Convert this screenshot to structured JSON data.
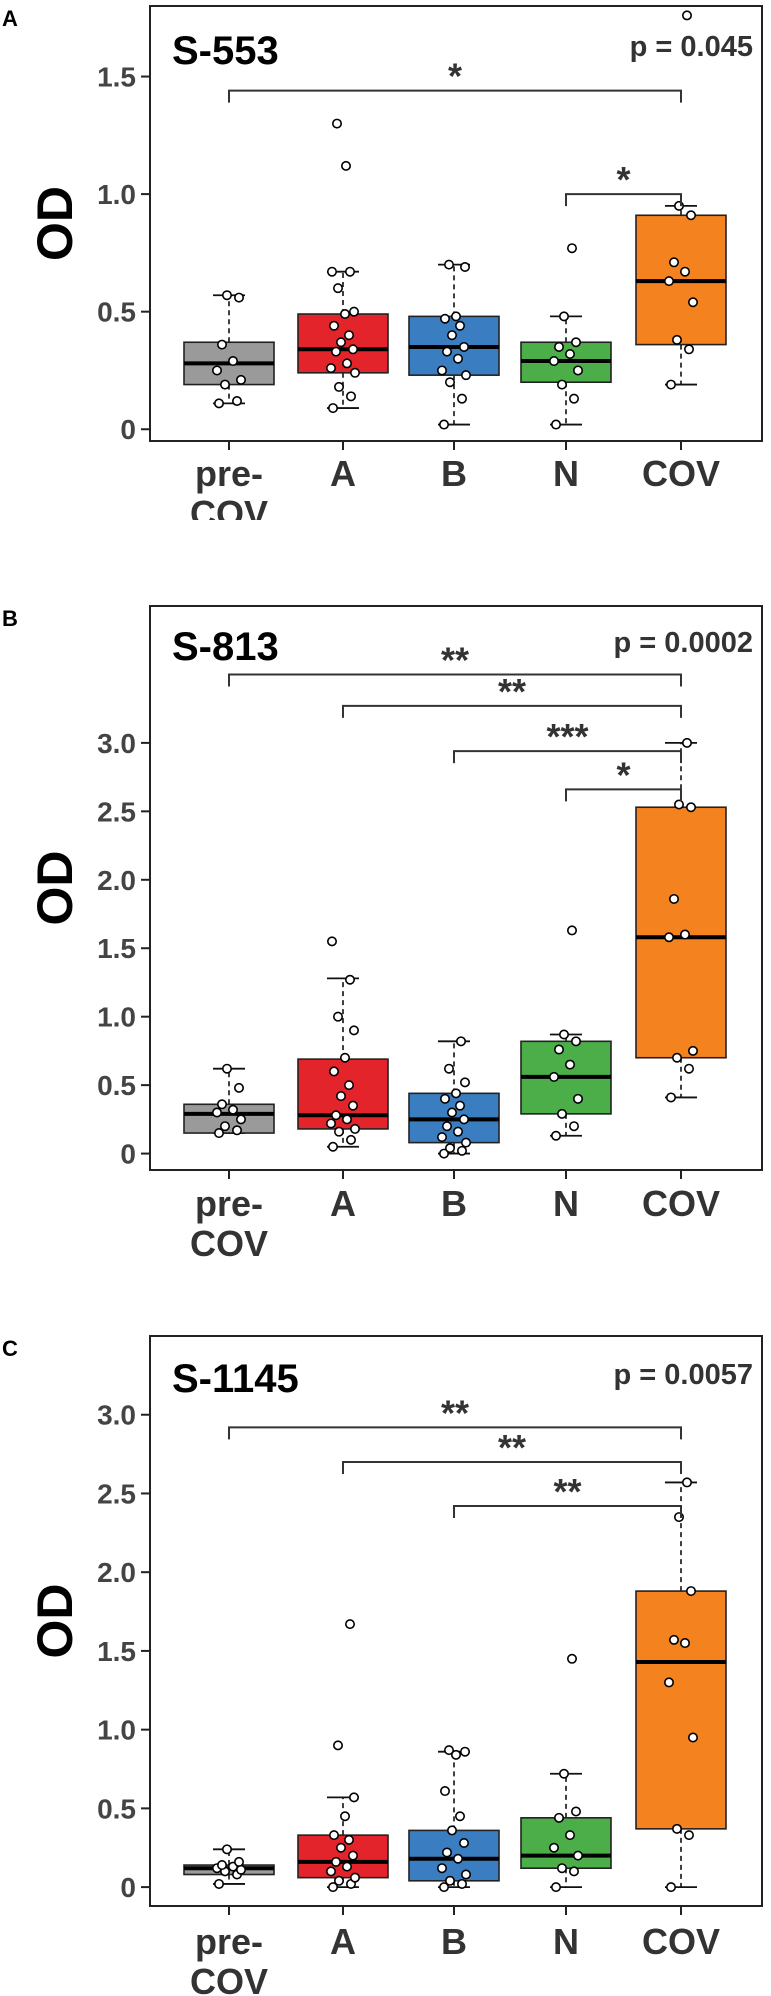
{
  "chart_data": [
    {
      "panel_label": "A",
      "title": "S-553",
      "p_value_label": "p = 0.045",
      "type": "box",
      "ylabel": "OD",
      "ylim": [
        -0.05,
        1.8
      ],
      "yticks": [
        0,
        0.5,
        1.0,
        1.5
      ],
      "ytick_labels": [
        "0",
        "0.5",
        "1.0",
        "1.5"
      ],
      "categories": [
        "pre-\nCOV",
        "A",
        "B",
        "N",
        "COV"
      ],
      "colors": [
        "#9a9a9a",
        "#e3242b",
        "#3a7ec1",
        "#4cae48",
        "#f4821f"
      ],
      "boxes": [
        {
          "q1": 0.19,
          "median": 0.28,
          "q3": 0.37,
          "whisker_low": 0.11,
          "whisker_high": 0.57,
          "points": [
            0.11,
            0.12,
            0.19,
            0.21,
            0.25,
            0.29,
            0.36,
            0.56,
            0.57
          ]
        },
        {
          "q1": 0.24,
          "median": 0.34,
          "q3": 0.49,
          "whisker_low": 0.09,
          "whisker_high": 0.67,
          "points": [
            0.09,
            0.14,
            0.18,
            0.24,
            0.26,
            0.28,
            0.33,
            0.34,
            0.37,
            0.4,
            0.44,
            0.49,
            0.5,
            0.6,
            0.67,
            0.67,
            1.12,
            1.3
          ]
        },
        {
          "q1": 0.23,
          "median": 0.35,
          "q3": 0.48,
          "whisker_low": 0.02,
          "whisker_high": 0.7,
          "points": [
            0.02,
            0.13,
            0.2,
            0.23,
            0.25,
            0.3,
            0.33,
            0.35,
            0.4,
            0.44,
            0.47,
            0.48,
            0.69,
            0.7
          ]
        },
        {
          "q1": 0.2,
          "median": 0.29,
          "q3": 0.37,
          "whisker_low": 0.02,
          "whisker_high": 0.48,
          "points": [
            0.02,
            0.13,
            0.19,
            0.25,
            0.29,
            0.32,
            0.35,
            0.37,
            0.48,
            0.77
          ]
        },
        {
          "q1": 0.36,
          "median": 0.63,
          "q3": 0.91,
          "whisker_low": 0.19,
          "whisker_high": 0.95,
          "points": [
            0.19,
            0.34,
            0.38,
            0.54,
            0.63,
            0.67,
            0.71,
            0.91,
            0.95,
            1.76
          ]
        }
      ],
      "brackets": [
        {
          "from": 0,
          "to": 4,
          "y": 1.44,
          "label": "*"
        },
        {
          "from": 3,
          "to": 4,
          "y": 1.0,
          "label": "*"
        }
      ]
    },
    {
      "panel_label": "B",
      "title": "S-813",
      "p_value_label": "p = 0.0002",
      "type": "box",
      "ylabel": "OD",
      "ylim": [
        -0.12,
        4.0
      ],
      "yticks": [
        0,
        0.5,
        1.0,
        1.5,
        2.0,
        2.5,
        3.0
      ],
      "ytick_labels": [
        "0",
        "0.5",
        "1.0",
        "1.5",
        "2.0",
        "2.5",
        "3.0"
      ],
      "categories": [
        "pre-\nCOV",
        "A",
        "B",
        "N",
        "COV"
      ],
      "colors": [
        "#9a9a9a",
        "#e3242b",
        "#3a7ec1",
        "#4cae48",
        "#f4821f"
      ],
      "boxes": [
        {
          "q1": 0.15,
          "median": 0.29,
          "q3": 0.36,
          "whisker_low": 0.15,
          "whisker_high": 0.62,
          "points": [
            0.15,
            0.17,
            0.2,
            0.25,
            0.3,
            0.32,
            0.36,
            0.48,
            0.62
          ]
        },
        {
          "q1": 0.18,
          "median": 0.28,
          "q3": 0.69,
          "whisker_low": 0.05,
          "whisker_high": 1.28,
          "points": [
            0.05,
            0.1,
            0.16,
            0.18,
            0.22,
            0.25,
            0.28,
            0.35,
            0.42,
            0.5,
            0.6,
            0.7,
            0.9,
            1.0,
            1.27,
            1.55
          ]
        },
        {
          "q1": 0.08,
          "median": 0.25,
          "q3": 0.44,
          "whisker_low": 0.0,
          "whisker_high": 0.82,
          "points": [
            0.0,
            0.02,
            0.04,
            0.08,
            0.12,
            0.16,
            0.2,
            0.25,
            0.3,
            0.35,
            0.4,
            0.44,
            0.52,
            0.62,
            0.82
          ]
        },
        {
          "q1": 0.29,
          "median": 0.56,
          "q3": 0.82,
          "whisker_low": 0.13,
          "whisker_high": 0.87,
          "points": [
            0.13,
            0.2,
            0.29,
            0.4,
            0.56,
            0.65,
            0.76,
            0.82,
            0.87,
            1.63
          ]
        },
        {
          "q1": 0.7,
          "median": 1.58,
          "q3": 2.53,
          "whisker_low": 0.41,
          "whisker_high": 3.0,
          "points": [
            0.41,
            0.62,
            0.7,
            0.75,
            1.58,
            1.6,
            1.86,
            2.53,
            2.55,
            3.0
          ]
        }
      ],
      "brackets": [
        {
          "from": 0,
          "to": 4,
          "y": 3.5,
          "label": "**"
        },
        {
          "from": 1,
          "to": 4,
          "y": 3.27,
          "label": "**"
        },
        {
          "from": 2,
          "to": 4,
          "y": 2.94,
          "label": "***"
        },
        {
          "from": 3,
          "to": 4,
          "y": 2.66,
          "label": "*"
        }
      ]
    },
    {
      "panel_label": "C",
      "title": "S-1145",
      "p_value_label": "p = 0.0057",
      "type": "box",
      "ylabel": "OD",
      "ylim": [
        -0.12,
        3.5
      ],
      "yticks": [
        0,
        0.5,
        1.0,
        1.5,
        2.0,
        2.5,
        3.0
      ],
      "ytick_labels": [
        "0",
        "0.5",
        "1.0",
        "1.5",
        "2.0",
        "2.5",
        "3.0"
      ],
      "categories": [
        "pre-\nCOV",
        "A",
        "B",
        "N",
        "COV"
      ],
      "colors": [
        "#9a9a9a",
        "#e3242b",
        "#3a7ec1",
        "#4cae48",
        "#f4821f"
      ],
      "boxes": [
        {
          "q1": 0.08,
          "median": 0.12,
          "q3": 0.14,
          "whisker_low": 0.02,
          "whisker_high": 0.24,
          "points": [
            0.02,
            0.08,
            0.1,
            0.11,
            0.12,
            0.13,
            0.14,
            0.16,
            0.24
          ]
        },
        {
          "q1": 0.06,
          "median": 0.16,
          "q3": 0.33,
          "whisker_low": 0.0,
          "whisker_high": 0.57,
          "points": [
            0.0,
            0.02,
            0.04,
            0.06,
            0.1,
            0.13,
            0.16,
            0.2,
            0.25,
            0.3,
            0.33,
            0.45,
            0.57,
            0.9,
            1.67
          ]
        },
        {
          "q1": 0.04,
          "median": 0.18,
          "q3": 0.36,
          "whisker_low": 0.0,
          "whisker_high": 0.86,
          "points": [
            0.0,
            0.02,
            0.04,
            0.08,
            0.12,
            0.18,
            0.22,
            0.28,
            0.36,
            0.45,
            0.61,
            0.84,
            0.86,
            0.87
          ]
        },
        {
          "q1": 0.12,
          "median": 0.2,
          "q3": 0.44,
          "whisker_low": 0.0,
          "whisker_high": 0.72,
          "points": [
            0.0,
            0.1,
            0.12,
            0.2,
            0.25,
            0.33,
            0.44,
            0.48,
            0.72,
            1.45
          ]
        },
        {
          "q1": 0.37,
          "median": 1.43,
          "q3": 1.88,
          "whisker_low": 0.0,
          "whisker_high": 2.57,
          "points": [
            0.0,
            0.33,
            0.37,
            0.95,
            1.3,
            1.55,
            1.57,
            1.88,
            2.35,
            2.57
          ]
        }
      ],
      "brackets": [
        {
          "from": 0,
          "to": 4,
          "y": 2.92,
          "label": "**"
        },
        {
          "from": 1,
          "to": 4,
          "y": 2.7,
          "label": "**"
        },
        {
          "from": 2,
          "to": 4,
          "y": 2.42,
          "label": "**"
        }
      ]
    }
  ]
}
